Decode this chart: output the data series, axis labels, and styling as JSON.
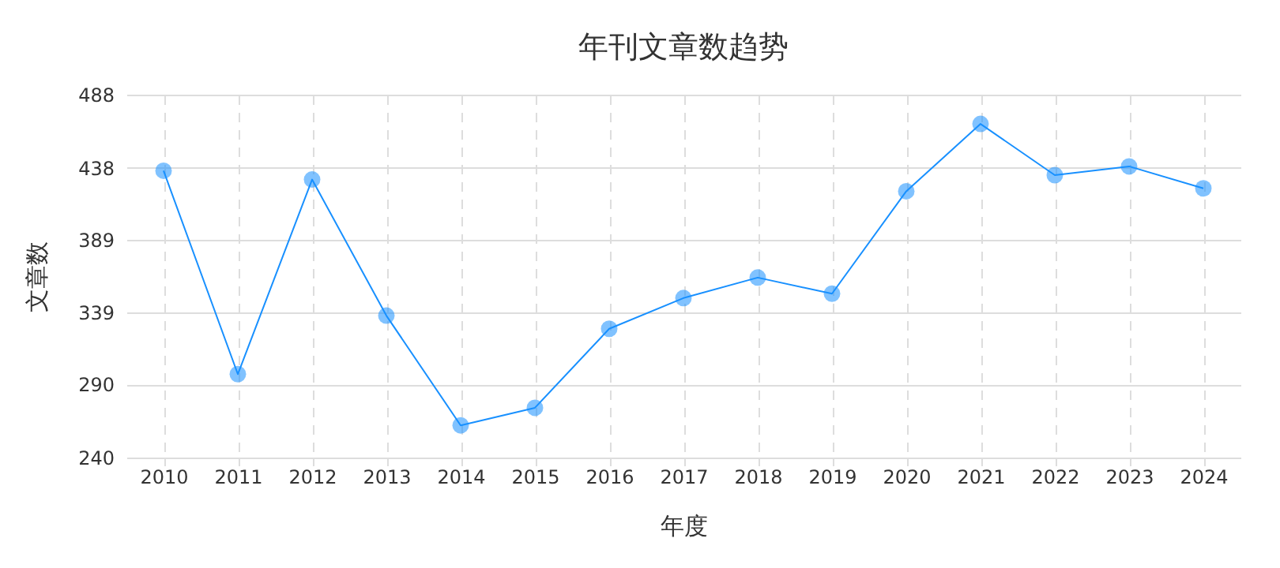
{
  "chart_data": {
    "type": "line",
    "title": "年刊文章数趋势",
    "xlabel": "年度",
    "ylabel": "文章数",
    "categories": [
      "2010",
      "2011",
      "2012",
      "2013",
      "2014",
      "2015",
      "2016",
      "2017",
      "2018",
      "2019",
      "2020",
      "2021",
      "2022",
      "2023",
      "2024"
    ],
    "series": [
      {
        "color": "#1890ff",
        "values": [
          436,
          297,
          430,
          337,
          262,
          274,
          328,
          349,
          363,
          352,
          422,
          468,
          433,
          439,
          424
        ]
      }
    ],
    "ylim": [
      240,
      488
    ],
    "yticks": [
      240,
      290,
      339,
      389,
      438,
      488
    ],
    "grid": true,
    "marker": "circle",
    "line_style": "solid"
  }
}
